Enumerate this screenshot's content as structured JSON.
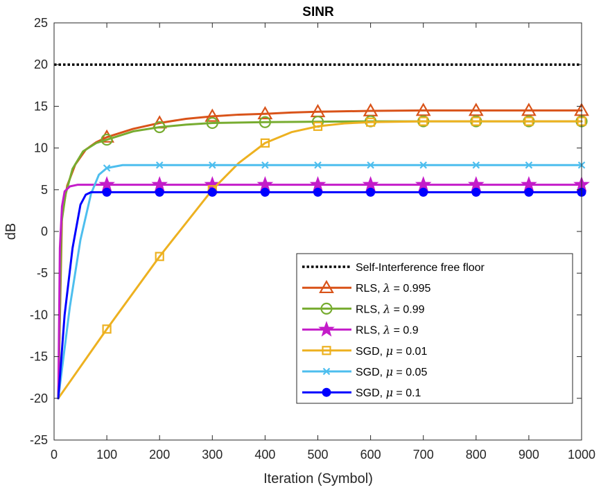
{
  "chart_data": {
    "type": "line",
    "title": "SINR",
    "xlabel": "Iteration (Symbol)",
    "ylabel": "dB",
    "xlim": [
      0,
      1000
    ],
    "ylim": [
      -25,
      25
    ],
    "xticks": [
      0,
      100,
      200,
      300,
      400,
      500,
      600,
      700,
      800,
      900,
      1000
    ],
    "yticks": [
      -25,
      -20,
      -15,
      -10,
      -5,
      0,
      5,
      10,
      15,
      20,
      25
    ],
    "grid": false,
    "legend_position": "bottom-right",
    "series": [
      {
        "name": "Self-Interference free floor",
        "color": "#000000",
        "style": "dotted",
        "marker": "none",
        "points": [
          [
            0,
            20
          ],
          [
            1000,
            20
          ]
        ]
      },
      {
        "name": "RLS, λ = 0.995",
        "legend_prefix": "RLS, ",
        "legend_symbol": "λ",
        "legend_suffix": " = 0.995",
        "color": "#D95319",
        "marker": "triangle",
        "points": [
          [
            8,
            -20
          ],
          [
            15,
            2
          ],
          [
            25,
            5.5
          ],
          [
            40,
            8
          ],
          [
            60,
            9.8
          ],
          [
            80,
            10.7
          ],
          [
            100,
            11.3
          ],
          [
            150,
            12.3
          ],
          [
            200,
            13
          ],
          [
            250,
            13.5
          ],
          [
            300,
            13.8
          ],
          [
            350,
            14
          ],
          [
            400,
            14.1
          ],
          [
            450,
            14.25
          ],
          [
            500,
            14.35
          ],
          [
            600,
            14.45
          ],
          [
            700,
            14.5
          ],
          [
            800,
            14.5
          ],
          [
            900,
            14.5
          ],
          [
            1000,
            14.5
          ]
        ],
        "marker_points": [
          [
            100,
            11.3
          ],
          [
            200,
            13
          ],
          [
            300,
            13.8
          ],
          [
            400,
            14.1
          ],
          [
            500,
            14.35
          ],
          [
            600,
            14.45
          ],
          [
            700,
            14.5
          ],
          [
            800,
            14.5
          ],
          [
            900,
            14.5
          ],
          [
            1000,
            14.5
          ]
        ]
      },
      {
        "name": "RLS, λ = 0.99",
        "legend_prefix": "RLS, ",
        "legend_symbol": "λ",
        "legend_suffix": " = 0.99",
        "color": "#77AC30",
        "marker": "circle",
        "points": [
          [
            8,
            -20
          ],
          [
            14,
            1
          ],
          [
            22,
            4.5
          ],
          [
            35,
            7.5
          ],
          [
            55,
            9.6
          ],
          [
            80,
            10.6
          ],
          [
            100,
            11
          ],
          [
            150,
            12
          ],
          [
            200,
            12.5
          ],
          [
            250,
            12.8
          ],
          [
            300,
            13
          ],
          [
            400,
            13.1
          ],
          [
            500,
            13.15
          ],
          [
            600,
            13.2
          ],
          [
            700,
            13.2
          ],
          [
            800,
            13.2
          ],
          [
            900,
            13.2
          ],
          [
            1000,
            13.2
          ]
        ],
        "marker_points": [
          [
            100,
            11
          ],
          [
            200,
            12.5
          ],
          [
            300,
            13
          ],
          [
            400,
            13.1
          ],
          [
            500,
            13.15
          ],
          [
            600,
            13.2
          ],
          [
            700,
            13.2
          ],
          [
            800,
            13.2
          ],
          [
            900,
            13.2
          ],
          [
            1000,
            13.2
          ]
        ]
      },
      {
        "name": "RLS, λ = 0.9",
        "legend_prefix": "RLS, ",
        "legend_symbol": "λ",
        "legend_suffix": " = 0.9",
        "color": "#C41CC9",
        "marker": "star",
        "points": [
          [
            8,
            -20
          ],
          [
            11,
            -2
          ],
          [
            15,
            3
          ],
          [
            20,
            4.8
          ],
          [
            30,
            5.4
          ],
          [
            45,
            5.6
          ],
          [
            100,
            5.6
          ],
          [
            1000,
            5.6
          ]
        ],
        "marker_points": [
          [
            100,
            5.6
          ],
          [
            200,
            5.6
          ],
          [
            300,
            5.6
          ],
          [
            400,
            5.6
          ],
          [
            500,
            5.6
          ],
          [
            600,
            5.6
          ],
          [
            700,
            5.6
          ],
          [
            800,
            5.6
          ],
          [
            900,
            5.6
          ],
          [
            1000,
            5.6
          ]
        ]
      },
      {
        "name": "SGD, μ = 0.01",
        "legend_prefix": "SGD, ",
        "legend_symbol": "μ",
        "legend_suffix": " = 0.01",
        "color": "#EDB120",
        "marker": "square",
        "points": [
          [
            8,
            -20
          ],
          [
            100,
            -11.7
          ],
          [
            200,
            -3
          ],
          [
            300,
            5
          ],
          [
            350,
            8.2
          ],
          [
            400,
            10.6
          ],
          [
            450,
            11.9
          ],
          [
            500,
            12.6
          ],
          [
            550,
            12.95
          ],
          [
            600,
            13.1
          ],
          [
            700,
            13.2
          ],
          [
            800,
            13.2
          ],
          [
            900,
            13.2
          ],
          [
            1000,
            13.2
          ]
        ],
        "marker_points": [
          [
            100,
            -11.7
          ],
          [
            200,
            -3
          ],
          [
            300,
            5
          ],
          [
            400,
            10.6
          ],
          [
            500,
            12.6
          ],
          [
            600,
            13.1
          ],
          [
            700,
            13.2
          ],
          [
            800,
            13.2
          ],
          [
            900,
            13.2
          ],
          [
            1000,
            13.2
          ]
        ]
      },
      {
        "name": "SGD, μ = 0.05",
        "legend_prefix": "SGD, ",
        "legend_symbol": "μ",
        "legend_suffix": " = 0.05",
        "color": "#4DBEEE",
        "marker": "x",
        "points": [
          [
            8,
            -20
          ],
          [
            30,
            -9
          ],
          [
            50,
            -1
          ],
          [
            70,
            4.5
          ],
          [
            85,
            6.8
          ],
          [
            100,
            7.6
          ],
          [
            130,
            7.95
          ],
          [
            1000,
            7.95
          ]
        ],
        "marker_points": [
          [
            100,
            7.6
          ],
          [
            200,
            7.95
          ],
          [
            300,
            7.95
          ],
          [
            400,
            7.95
          ],
          [
            500,
            7.95
          ],
          [
            600,
            7.95
          ],
          [
            700,
            7.95
          ],
          [
            800,
            7.95
          ],
          [
            900,
            7.95
          ],
          [
            1000,
            7.95
          ]
        ]
      },
      {
        "name": "SGD, μ = 0.1",
        "legend_prefix": "SGD, ",
        "legend_symbol": "μ",
        "legend_suffix": " = 0.1",
        "color": "#0000FF",
        "marker": "dot",
        "points": [
          [
            8,
            -20
          ],
          [
            20,
            -10
          ],
          [
            35,
            -2
          ],
          [
            50,
            3.2
          ],
          [
            60,
            4.4
          ],
          [
            70,
            4.7
          ],
          [
            1000,
            4.7
          ]
        ],
        "marker_points": [
          [
            100,
            4.7
          ],
          [
            200,
            4.7
          ],
          [
            300,
            4.7
          ],
          [
            400,
            4.7
          ],
          [
            500,
            4.7
          ],
          [
            600,
            4.7
          ],
          [
            700,
            4.7
          ],
          [
            800,
            4.7
          ],
          [
            900,
            4.7
          ],
          [
            1000,
            4.7
          ]
        ]
      }
    ]
  }
}
